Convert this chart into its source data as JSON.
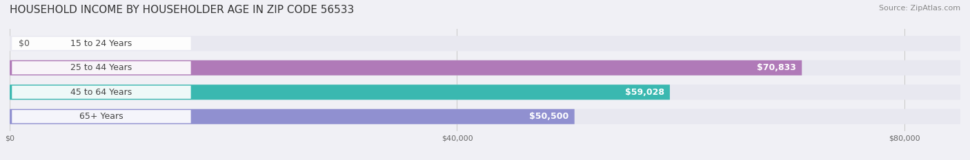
{
  "title": "HOUSEHOLD INCOME BY HOUSEHOLDER AGE IN ZIP CODE 56533",
  "source": "Source: ZipAtlas.com",
  "categories": [
    "15 to 24 Years",
    "25 to 44 Years",
    "45 to 64 Years",
    "65+ Years"
  ],
  "values": [
    0,
    70833,
    59028,
    50500
  ],
  "bar_colors": [
    "#a8b8d8",
    "#b07ab8",
    "#3ab8b0",
    "#9090d0"
  ],
  "label_colors": [
    "#555555",
    "#ffffff",
    "#ffffff",
    "#ffffff"
  ],
  "value_labels": [
    "$0",
    "$70,833",
    "$59,028",
    "$50,500"
  ],
  "x_ticks": [
    0,
    40000,
    80000
  ],
  "x_tick_labels": [
    "$0",
    "$40,000",
    "$80,000"
  ],
  "xlim": [
    0,
    85000
  ],
  "background_color": "#f0f0f5",
  "bar_background_color": "#e8e8f0",
  "title_fontsize": 11,
  "source_fontsize": 8,
  "bar_height": 0.62,
  "bar_label_fontsize": 9
}
